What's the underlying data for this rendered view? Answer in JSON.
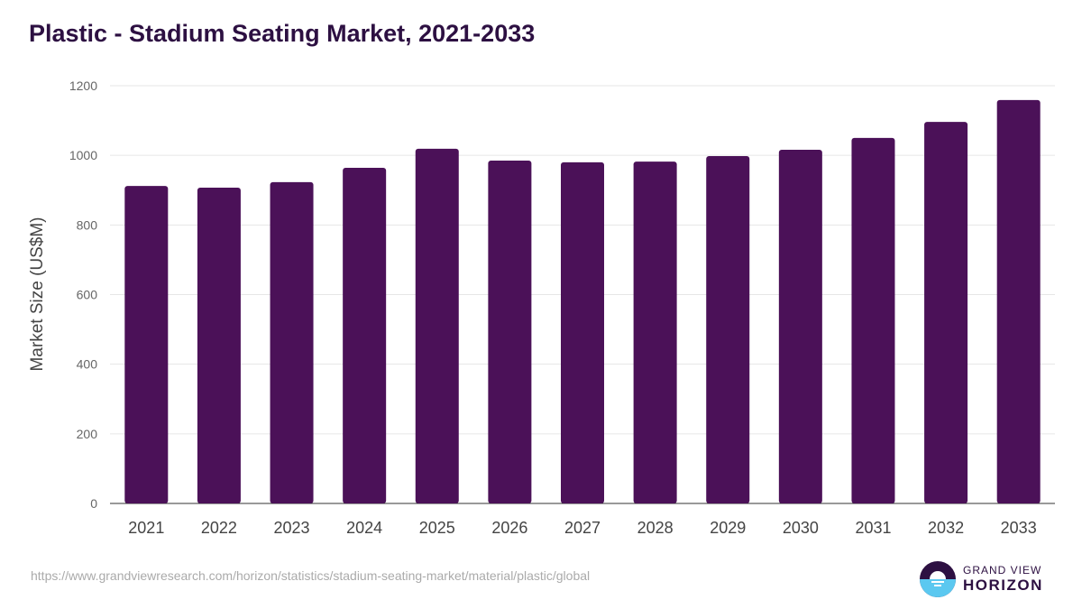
{
  "chart_data": {
    "type": "bar",
    "title": "Plastic - Stadium Seating Market, 2021-2033",
    "xlabel": "",
    "ylabel": "Market Size (US$M)",
    "categories": [
      "2021",
      "2022",
      "2023",
      "2024",
      "2025",
      "2026",
      "2027",
      "2028",
      "2029",
      "2030",
      "2031",
      "2032",
      "2033"
    ],
    "values": [
      912,
      907,
      923,
      964,
      1019,
      985,
      980,
      982,
      998,
      1016,
      1050,
      1096,
      1159
    ],
    "ylim": [
      0,
      1200
    ],
    "yticks": [
      0,
      200,
      400,
      600,
      800,
      1000,
      1200
    ],
    "grid": true,
    "color": "#4b1158"
  },
  "footer": {
    "url": "https://www.grandviewresearch.com/horizon/statistics/stadium-seating-market/material/plastic/global"
  },
  "logo": {
    "line1": "GRAND VIEW",
    "line2": "HORIZON"
  }
}
